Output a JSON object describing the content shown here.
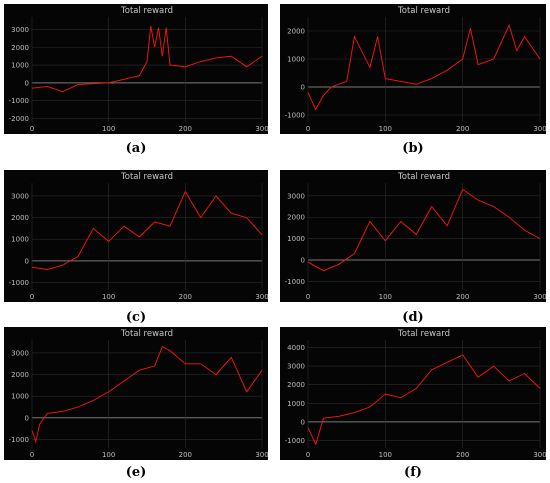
{
  "captions": [
    "(a)",
    "(b)",
    "(c)",
    "(d)",
    "(e)",
    "(f)"
  ],
  "colors": {
    "background": "#050505",
    "grid": "#2c2c2c",
    "zero_line": "#7a7a7a",
    "line": "#ff1414",
    "axis_text": "#bfbfbf",
    "title_text": "#c8c8c8"
  },
  "chart_data": [
    {
      "type": "line",
      "title": "Total reward",
      "xlim": [
        0,
        300
      ],
      "ylim": [
        -2200,
        3700
      ],
      "xticks": [
        0,
        100,
        200,
        300
      ],
      "yticks": [
        -2000,
        -1000,
        0,
        1000,
        2000,
        3000
      ],
      "x": [
        0,
        20,
        40,
        60,
        80,
        100,
        120,
        140,
        150,
        155,
        160,
        165,
        170,
        175,
        180,
        200,
        220,
        240,
        260,
        280,
        300
      ],
      "y": [
        -300,
        -200,
        -500,
        -100,
        -50,
        0,
        200,
        400,
        1200,
        3200,
        2000,
        3100,
        1500,
        3100,
        1000,
        900,
        1200,
        1400,
        1500,
        900,
        1500
      ]
    },
    {
      "type": "line",
      "title": "Total reward",
      "xlim": [
        0,
        300
      ],
      "ylim": [
        -1250,
        2500
      ],
      "xticks": [
        0,
        100,
        200,
        300
      ],
      "yticks": [
        -1000,
        0,
        1000,
        2000
      ],
      "x": [
        0,
        10,
        20,
        30,
        50,
        60,
        80,
        90,
        100,
        120,
        140,
        160,
        180,
        200,
        210,
        220,
        240,
        260,
        270,
        280,
        300
      ],
      "y": [
        -200,
        -800,
        -300,
        0,
        200,
        1800,
        700,
        1800,
        300,
        200,
        100,
        300,
        600,
        1000,
        2100,
        800,
        1000,
        2200,
        1300,
        1800,
        1000
      ]
    },
    {
      "type": "line",
      "title": "Total reward",
      "xlim": [
        0,
        300
      ],
      "ylim": [
        -1350,
        3600
      ],
      "xticks": [
        0,
        100,
        200,
        300
      ],
      "yticks": [
        -1000,
        0,
        1000,
        2000,
        3000
      ],
      "x": [
        0,
        20,
        40,
        60,
        80,
        100,
        120,
        140,
        160,
        180,
        200,
        220,
        240,
        260,
        280,
        300
      ],
      "y": [
        -300,
        -400,
        -200,
        200,
        1500,
        900,
        1600,
        1100,
        1800,
        1600,
        3200,
        2000,
        3000,
        2200,
        2000,
        1200
      ]
    },
    {
      "type": "line",
      "title": "Total reward",
      "xlim": [
        0,
        300
      ],
      "ylim": [
        -1400,
        3600
      ],
      "xticks": [
        0,
        100,
        200,
        300
      ],
      "yticks": [
        -1000,
        0,
        1000,
        2000,
        3000
      ],
      "x": [
        0,
        20,
        40,
        60,
        80,
        100,
        120,
        140,
        160,
        180,
        200,
        220,
        240,
        260,
        280,
        300
      ],
      "y": [
        -100,
        -500,
        -200,
        300,
        1800,
        900,
        1800,
        1200,
        2500,
        1600,
        3300,
        2800,
        2500,
        2000,
        1400,
        1000
      ]
    },
    {
      "type": "line",
      "title": "Total reward",
      "xlim": [
        0,
        300
      ],
      "ylim": [
        -1400,
        3600
      ],
      "xticks": [
        0,
        100,
        200,
        300
      ],
      "yticks": [
        -1000,
        0,
        1000,
        2000,
        3000
      ],
      "x": [
        0,
        5,
        10,
        20,
        40,
        60,
        80,
        100,
        120,
        140,
        160,
        170,
        180,
        200,
        220,
        240,
        260,
        280,
        300
      ],
      "y": [
        -600,
        -1100,
        -300,
        200,
        300,
        500,
        800,
        1200,
        1700,
        2200,
        2400,
        3300,
        3100,
        2500,
        2500,
        2000,
        2800,
        1200,
        2200
      ]
    },
    {
      "type": "line",
      "title": "Total reward",
      "xlim": [
        0,
        300
      ],
      "ylim": [
        -1400,
        4400
      ],
      "xticks": [
        0,
        100,
        200,
        300
      ],
      "yticks": [
        -1000,
        0,
        1000,
        2000,
        3000,
        4000
      ],
      "x": [
        0,
        10,
        20,
        40,
        60,
        80,
        100,
        120,
        140,
        160,
        180,
        200,
        220,
        240,
        260,
        280,
        300
      ],
      "y": [
        -300,
        -1200,
        200,
        300,
        500,
        800,
        1500,
        1300,
        1800,
        2800,
        3200,
        3600,
        2400,
        3000,
        2200,
        2600,
        1800
      ]
    }
  ]
}
